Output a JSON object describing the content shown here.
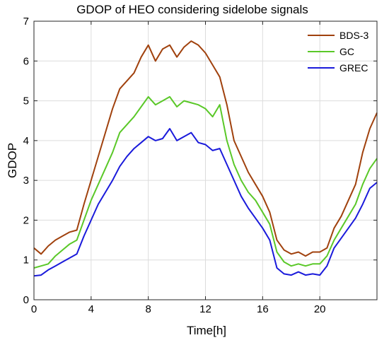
{
  "chart_data": {
    "type": "line",
    "title": "GDOP of HEO considering sidelobe signals",
    "xlabel": "Time[h]",
    "ylabel": "GDOP",
    "xlim": [
      0,
      24
    ],
    "ylim": [
      0,
      7
    ],
    "xticks": [
      0,
      4,
      8,
      12,
      16,
      20
    ],
    "yticks": [
      0,
      1,
      2,
      3,
      4,
      5,
      6,
      7
    ],
    "grid": true,
    "legend_position": "top-right",
    "series": [
      {
        "name": "BDS-3",
        "color": "#a0410d",
        "points": [
          [
            0,
            1.3
          ],
          [
            0.5,
            1.15
          ],
          [
            1,
            1.35
          ],
          [
            1.5,
            1.5
          ],
          [
            2,
            1.6
          ],
          [
            2.5,
            1.7
          ],
          [
            3,
            1.75
          ],
          [
            3.5,
            2.4
          ],
          [
            4,
            3.0
          ],
          [
            4.5,
            3.6
          ],
          [
            5,
            4.2
          ],
          [
            5.5,
            4.8
          ],
          [
            6,
            5.3
          ],
          [
            6.5,
            5.5
          ],
          [
            7,
            5.7
          ],
          [
            7.5,
            6.1
          ],
          [
            8,
            6.4
          ],
          [
            8.5,
            6.0
          ],
          [
            9,
            6.3
          ],
          [
            9.5,
            6.4
          ],
          [
            10,
            6.1
          ],
          [
            10.5,
            6.35
          ],
          [
            11,
            6.5
          ],
          [
            11.5,
            6.4
          ],
          [
            12,
            6.2
          ],
          [
            12.5,
            5.9
          ],
          [
            13,
            5.6
          ],
          [
            13.5,
            4.9
          ],
          [
            14,
            4.0
          ],
          [
            14.5,
            3.6
          ],
          [
            15,
            3.2
          ],
          [
            15.5,
            2.9
          ],
          [
            16,
            2.6
          ],
          [
            16.5,
            2.2
          ],
          [
            17,
            1.5
          ],
          [
            17.5,
            1.25
          ],
          [
            18,
            1.15
          ],
          [
            18.5,
            1.2
          ],
          [
            19,
            1.1
          ],
          [
            19.5,
            1.2
          ],
          [
            20,
            1.2
          ],
          [
            20.5,
            1.3
          ],
          [
            21,
            1.8
          ],
          [
            21.5,
            2.1
          ],
          [
            22,
            2.5
          ],
          [
            22.5,
            2.9
          ],
          [
            23,
            3.7
          ],
          [
            23.5,
            4.3
          ],
          [
            24,
            4.7
          ]
        ]
      },
      {
        "name": "GC",
        "color": "#5ac828",
        "points": [
          [
            0,
            0.8
          ],
          [
            0.5,
            0.85
          ],
          [
            1,
            0.9
          ],
          [
            1.5,
            1.1
          ],
          [
            2,
            1.25
          ],
          [
            2.5,
            1.4
          ],
          [
            3,
            1.5
          ],
          [
            3.5,
            2.0
          ],
          [
            4,
            2.5
          ],
          [
            4.5,
            2.9
          ],
          [
            5,
            3.3
          ],
          [
            5.5,
            3.7
          ],
          [
            6,
            4.2
          ],
          [
            6.5,
            4.4
          ],
          [
            7,
            4.6
          ],
          [
            7.5,
            4.85
          ],
          [
            8,
            5.1
          ],
          [
            8.5,
            4.9
          ],
          [
            9,
            5.0
          ],
          [
            9.5,
            5.1
          ],
          [
            10,
            4.85
          ],
          [
            10.5,
            5.0
          ],
          [
            11,
            4.95
          ],
          [
            11.5,
            4.9
          ],
          [
            12,
            4.8
          ],
          [
            12.5,
            4.6
          ],
          [
            13,
            4.9
          ],
          [
            13.5,
            4.0
          ],
          [
            14,
            3.4
          ],
          [
            14.5,
            3.0
          ],
          [
            15,
            2.7
          ],
          [
            15.5,
            2.5
          ],
          [
            16,
            2.2
          ],
          [
            16.5,
            1.9
          ],
          [
            17,
            1.2
          ],
          [
            17.5,
            0.95
          ],
          [
            18,
            0.85
          ],
          [
            18.5,
            0.9
          ],
          [
            19,
            0.85
          ],
          [
            19.5,
            0.9
          ],
          [
            20,
            0.9
          ],
          [
            20.5,
            1.1
          ],
          [
            21,
            1.5
          ],
          [
            21.5,
            1.8
          ],
          [
            22,
            2.1
          ],
          [
            22.5,
            2.4
          ],
          [
            23,
            2.9
          ],
          [
            23.5,
            3.3
          ],
          [
            24,
            3.55
          ]
        ]
      },
      {
        "name": "GREC",
        "color": "#1a1adb",
        "points": [
          [
            0,
            0.6
          ],
          [
            0.5,
            0.62
          ],
          [
            1,
            0.75
          ],
          [
            1.5,
            0.85
          ],
          [
            2,
            0.95
          ],
          [
            2.5,
            1.05
          ],
          [
            3,
            1.15
          ],
          [
            3.5,
            1.6
          ],
          [
            4,
            2.0
          ],
          [
            4.5,
            2.4
          ],
          [
            5,
            2.7
          ],
          [
            5.5,
            3.0
          ],
          [
            6,
            3.35
          ],
          [
            6.5,
            3.6
          ],
          [
            7,
            3.8
          ],
          [
            7.5,
            3.95
          ],
          [
            8,
            4.1
          ],
          [
            8.5,
            4.0
          ],
          [
            9,
            4.05
          ],
          [
            9.5,
            4.3
          ],
          [
            10,
            4.0
          ],
          [
            10.5,
            4.1
          ],
          [
            11,
            4.2
          ],
          [
            11.5,
            3.95
          ],
          [
            12,
            3.9
          ],
          [
            12.5,
            3.75
          ],
          [
            13,
            3.8
          ],
          [
            13.5,
            3.4
          ],
          [
            14,
            3.0
          ],
          [
            14.5,
            2.6
          ],
          [
            15,
            2.3
          ],
          [
            15.5,
            2.05
          ],
          [
            16,
            1.8
          ],
          [
            16.5,
            1.5
          ],
          [
            17,
            0.8
          ],
          [
            17.5,
            0.65
          ],
          [
            18,
            0.62
          ],
          [
            18.5,
            0.7
          ],
          [
            19,
            0.62
          ],
          [
            19.5,
            0.65
          ],
          [
            20,
            0.62
          ],
          [
            20.5,
            0.85
          ],
          [
            21,
            1.3
          ],
          [
            21.5,
            1.55
          ],
          [
            22,
            1.8
          ],
          [
            22.5,
            2.05
          ],
          [
            23,
            2.4
          ],
          [
            23.5,
            2.8
          ],
          [
            24,
            2.95
          ]
        ]
      }
    ]
  }
}
